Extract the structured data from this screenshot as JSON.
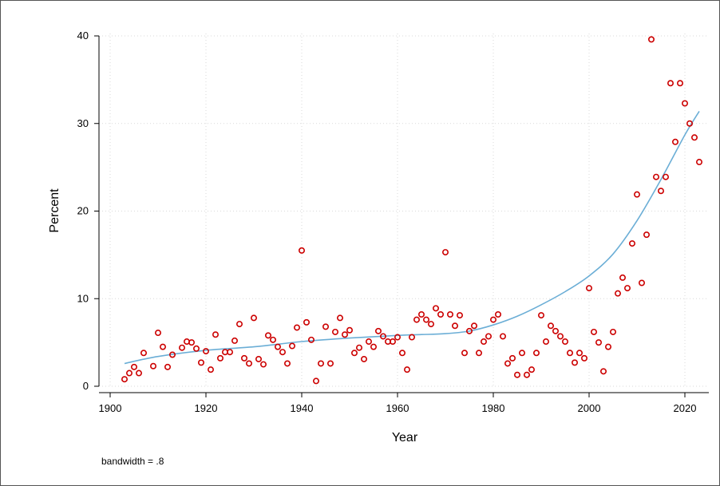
{
  "chart_data": {
    "type": "scatter",
    "xlabel": "Year",
    "ylabel": "Percent",
    "note": "bandwidth = .8",
    "xlim": [
      1900,
      2024
    ],
    "ylim": [
      0,
      40
    ],
    "x_ticks": [
      1900,
      1920,
      1940,
      1960,
      1980,
      2000,
      2020
    ],
    "y_ticks": [
      0,
      10,
      20,
      30,
      40
    ],
    "grid": true,
    "colors": {
      "points": "#cc0000",
      "smooth": "#6baed6",
      "grid": "#d9d9d9"
    },
    "points": [
      [
        1903,
        0.8
      ],
      [
        1904,
        1.5
      ],
      [
        1905,
        2.2
      ],
      [
        1906,
        1.5
      ],
      [
        1907,
        3.8
      ],
      [
        1909,
        2.3
      ],
      [
        1910,
        6.1
      ],
      [
        1911,
        4.5
      ],
      [
        1912,
        2.2
      ],
      [
        1913,
        3.6
      ],
      [
        1915,
        4.4
      ],
      [
        1916,
        5.1
      ],
      [
        1917,
        5.0
      ],
      [
        1918,
        4.3
      ],
      [
        1919,
        2.7
      ],
      [
        1920,
        4.0
      ],
      [
        1921,
        1.9
      ],
      [
        1922,
        5.9
      ],
      [
        1923,
        3.2
      ],
      [
        1924,
        3.9
      ],
      [
        1925,
        3.9
      ],
      [
        1926,
        5.2
      ],
      [
        1927,
        7.1
      ],
      [
        1928,
        3.2
      ],
      [
        1929,
        2.6
      ],
      [
        1930,
        7.8
      ],
      [
        1931,
        3.1
      ],
      [
        1932,
        2.5
      ],
      [
        1933,
        5.8
      ],
      [
        1934,
        5.3
      ],
      [
        1935,
        4.5
      ],
      [
        1936,
        3.9
      ],
      [
        1937,
        2.6
      ],
      [
        1938,
        4.6
      ],
      [
        1939,
        6.7
      ],
      [
        1940,
        15.5
      ],
      [
        1941,
        7.3
      ],
      [
        1942,
        5.3
      ],
      [
        1943,
        0.6
      ],
      [
        1944,
        2.6
      ],
      [
        1945,
        6.8
      ],
      [
        1946,
        2.6
      ],
      [
        1947,
        6.2
      ],
      [
        1948,
        7.8
      ],
      [
        1949,
        5.9
      ],
      [
        1950,
        6.4
      ],
      [
        1951,
        3.8
      ],
      [
        1952,
        4.4
      ],
      [
        1953,
        3.1
      ],
      [
        1954,
        5.1
      ],
      [
        1955,
        4.5
      ],
      [
        1956,
        6.3
      ],
      [
        1957,
        5.7
      ],
      [
        1958,
        5.1
      ],
      [
        1959,
        5.1
      ],
      [
        1960,
        5.6
      ],
      [
        1961,
        3.8
      ],
      [
        1962,
        1.9
      ],
      [
        1963,
        5.6
      ],
      [
        1964,
        7.6
      ],
      [
        1965,
        8.2
      ],
      [
        1966,
        7.6
      ],
      [
        1967,
        7.1
      ],
      [
        1968,
        8.9
      ],
      [
        1969,
        8.2
      ],
      [
        1970,
        15.3
      ],
      [
        1971,
        8.2
      ],
      [
        1972,
        6.9
      ],
      [
        1973,
        8.1
      ],
      [
        1974,
        3.8
      ],
      [
        1975,
        6.3
      ],
      [
        1976,
        6.9
      ],
      [
        1977,
        3.8
      ],
      [
        1978,
        5.1
      ],
      [
        1979,
        5.7
      ],
      [
        1980,
        7.6
      ],
      [
        1981,
        8.2
      ],
      [
        1982,
        5.7
      ],
      [
        1983,
        2.6
      ],
      [
        1984,
        3.2
      ],
      [
        1985,
        1.3
      ],
      [
        1986,
        3.8
      ],
      [
        1987,
        1.3
      ],
      [
        1988,
        1.9
      ],
      [
        1989,
        3.8
      ],
      [
        1990,
        8.1
      ],
      [
        1991,
        5.1
      ],
      [
        1992,
        6.9
      ],
      [
        1993,
        6.3
      ],
      [
        1994,
        5.7
      ],
      [
        1995,
        5.1
      ],
      [
        1996,
        3.8
      ],
      [
        1997,
        2.7
      ],
      [
        1998,
        3.8
      ],
      [
        1999,
        3.2
      ],
      [
        2000,
        11.2
      ],
      [
        2001,
        6.2
      ],
      [
        2002,
        5.0
      ],
      [
        2003,
        1.7
      ],
      [
        2004,
        4.5
      ],
      [
        2005,
        6.2
      ],
      [
        2006,
        10.6
      ],
      [
        2007,
        12.4
      ],
      [
        2008,
        11.2
      ],
      [
        2009,
        16.3
      ],
      [
        2010,
        21.9
      ],
      [
        2011,
        11.8
      ],
      [
        2012,
        17.3
      ],
      [
        2013,
        39.6
      ],
      [
        2014,
        23.9
      ],
      [
        2015,
        22.3
      ],
      [
        2016,
        23.9
      ],
      [
        2017,
        34.6
      ],
      [
        2018,
        27.9
      ],
      [
        2019,
        34.6
      ],
      [
        2020,
        32.3
      ],
      [
        2021,
        30.0
      ],
      [
        2022,
        28.4
      ],
      [
        2023,
        25.6
      ]
    ],
    "smooth_curve": [
      [
        1903,
        2.6
      ],
      [
        1910,
        3.4
      ],
      [
        1920,
        4.1
      ],
      [
        1930,
        4.5
      ],
      [
        1940,
        5.1
      ],
      [
        1950,
        5.5
      ],
      [
        1960,
        5.8
      ],
      [
        1965,
        5.9
      ],
      [
        1970,
        6.0
      ],
      [
        1975,
        6.3
      ],
      [
        1980,
        7.0
      ],
      [
        1985,
        8.0
      ],
      [
        1990,
        9.3
      ],
      [
        1995,
        10.8
      ],
      [
        2000,
        12.6
      ],
      [
        2005,
        15.1
      ],
      [
        2010,
        18.9
      ],
      [
        2015,
        23.6
      ],
      [
        2020,
        28.7
      ],
      [
        2023,
        31.4
      ]
    ]
  }
}
